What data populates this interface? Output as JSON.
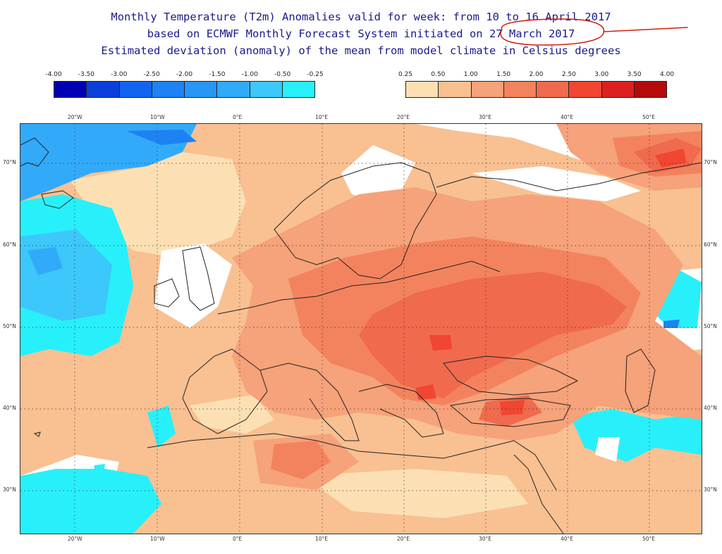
{
  "title": {
    "line1": "Monthly Temperature (T2m) Anomalies valid for week: from 10 to 16 April 2017",
    "line2": "based on ECMWF Monthly Forecast System initiated on 27 March 2017",
    "line3": "Estimated deviation (anomaly) of the mean from model climate in Celsius degrees"
  },
  "legend": {
    "cold_labels": [
      "-4.00",
      "-3.50",
      "-3.00",
      "-2.50",
      "-2.00",
      "-1.50",
      "-1.00",
      "-0.50",
      "-0.25"
    ],
    "cold_colors": [
      "#0000b4",
      "#0a3fdc",
      "#1464f0",
      "#1e82f5",
      "#2896f5",
      "#32aafa",
      "#3cc8fa",
      "#28f0fa"
    ],
    "warm_labels": [
      "0.25",
      "0.50",
      "1.00",
      "1.50",
      "2.00",
      "2.50",
      "3.00",
      "3.50",
      "4.00"
    ],
    "warm_colors": [
      "#fce0b4",
      "#f9c092",
      "#f6a27a",
      "#f3835e",
      "#f06a4e",
      "#f04632",
      "#dc2020",
      "#b40a0a"
    ]
  },
  "map": {
    "lon_labels": [
      "20°W",
      "10°W",
      "0°E",
      "10°E",
      "20°E",
      "30°E",
      "40°E",
      "50°E"
    ],
    "lat_labels": [
      "70°N",
      "60°N",
      "50°N",
      "40°N",
      "30°N"
    ],
    "colors": {
      "land_outline": "#222222",
      "grid": "#333333",
      "neutral": "#ffffff"
    }
  },
  "annotation": {
    "color": "#d02010",
    "circled_text": "27 March 2017"
  }
}
